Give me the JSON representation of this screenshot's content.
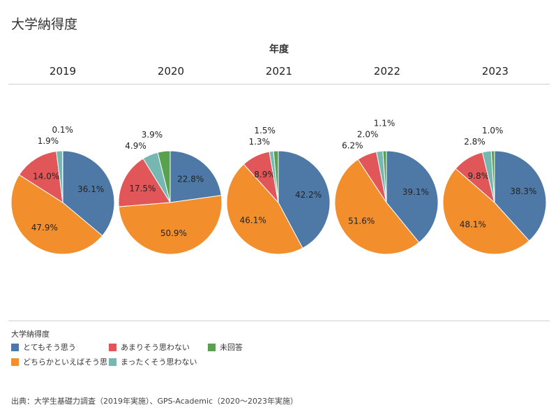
{
  "title": "大学納得度",
  "column_header": "年度",
  "legend": {
    "title": "大学納得度",
    "items": [
      {
        "label": "とてもそう思う",
        "color": "#4e79a7"
      },
      {
        "label": "あまりそう思わない",
        "color": "#e15759"
      },
      {
        "label": "未回答",
        "color": "#59a14f"
      },
      {
        "label": "どちらかといえばそう思う",
        "color": "#f28e2b"
      },
      {
        "label": "まったくそう思わない",
        "color": "#76b7b2"
      }
    ]
  },
  "source": "出典：大学生基礎力調査（2019年実施）、GPS-Academic（2020〜2023年実施）",
  "chart_data": {
    "type": "pie",
    "categories": [
      "とてもそう思う",
      "どちらかといえばそう思う",
      "あまりそう思わない",
      "まったくそう思わない",
      "未回答"
    ],
    "series": [
      {
        "name": "2019",
        "values": [
          36.1,
          47.9,
          14.0,
          1.9,
          0.1
        ],
        "labels": [
          "36.1%",
          "47.9%",
          "14.0%",
          "1.9%",
          "0.1%"
        ]
      },
      {
        "name": "2020",
        "values": [
          22.8,
          50.9,
          17.5,
          4.9,
          3.9
        ],
        "labels": [
          "22.8%",
          "50.9%",
          "17.5%",
          "4.9%",
          "3.9%"
        ]
      },
      {
        "name": "2021",
        "values": [
          42.2,
          46.1,
          8.9,
          1.3,
          1.5
        ],
        "labels": [
          "42.2%",
          "46.1%",
          "8.9%",
          "1.3%",
          "1.5%"
        ]
      },
      {
        "name": "2022",
        "values": [
          39.1,
          51.6,
          6.2,
          2.0,
          1.1
        ],
        "labels": [
          "39.1%",
          "51.6%",
          "6.2%",
          "2.0%",
          "1.1%"
        ]
      },
      {
        "name": "2023",
        "values": [
          38.3,
          48.1,
          9.8,
          2.8,
          1.0
        ],
        "labels": [
          "38.3%",
          "48.1%",
          "9.8%",
          "2.8%",
          "1.0%"
        ]
      }
    ]
  }
}
